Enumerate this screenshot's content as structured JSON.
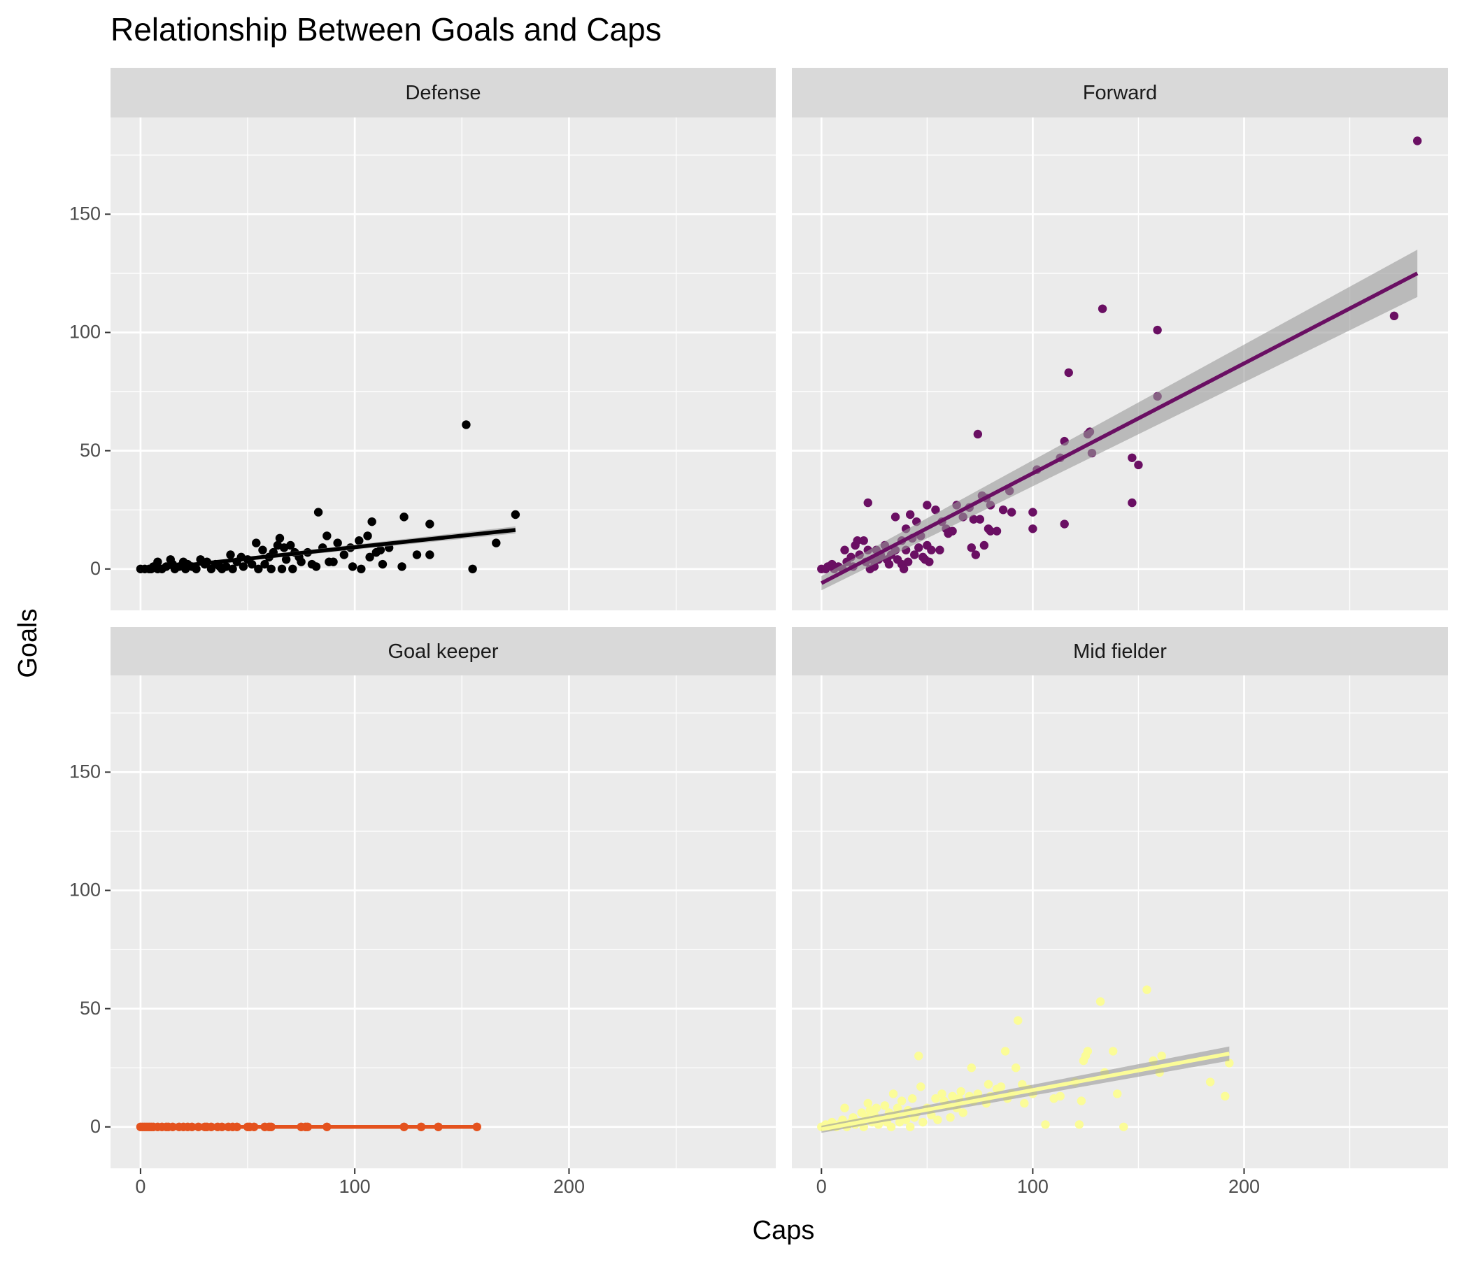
{
  "chart_data": {
    "type": "scatter",
    "title": "Relationship Between Goals and Caps",
    "x_label": "Caps",
    "y_label": "Goals",
    "xlim": [
      -14,
      296.5
    ],
    "ylim": [
      -17.5,
      190.9
    ],
    "xticks": [
      0,
      100,
      200
    ],
    "yticks": [
      0,
      50,
      100,
      150
    ],
    "x_minor_grid": [
      50,
      150,
      250
    ],
    "y_minor_grid": [
      25,
      75,
      125,
      175
    ],
    "grid": true,
    "series": [
      {
        "name": "Defense",
        "color": "#000000",
        "x": [
          0,
          2,
          4,
          5,
          6,
          8,
          8,
          10,
          12,
          14,
          15,
          16,
          18,
          20,
          21,
          22,
          24,
          26,
          28,
          30,
          31,
          33,
          35,
          37,
          38,
          40,
          42,
          43,
          45,
          47,
          48,
          50,
          52,
          54,
          55,
          57,
          58,
          60,
          61,
          62,
          64,
          65,
          66,
          67,
          68,
          70,
          71,
          72,
          74,
          75,
          78,
          80,
          82,
          83,
          85,
          87,
          88,
          90,
          92,
          95,
          98,
          99,
          102,
          103,
          106,
          107,
          108,
          110,
          112,
          113,
          116,
          122,
          123,
          129,
          135,
          135,
          152,
          155,
          166,
          175
        ],
        "values": [
          0,
          0,
          0,
          0,
          1,
          3,
          0,
          0,
          1,
          4,
          2,
          0,
          1,
          3,
          0,
          2,
          1,
          0,
          4,
          2,
          3,
          0,
          2,
          1,
          0,
          1,
          6,
          0,
          3,
          5,
          1,
          4,
          2,
          11,
          0,
          8,
          2,
          5,
          0,
          7,
          10,
          13,
          0,
          9,
          4,
          10,
          0,
          7,
          5,
          3,
          7,
          2,
          1,
          24,
          9,
          14,
          3,
          3,
          11,
          6,
          9,
          1,
          12,
          0,
          14,
          5,
          20,
          7,
          8,
          2,
          9,
          1,
          22,
          6,
          19,
          6,
          61,
          0,
          11,
          23
        ],
        "fit": {
          "x": [
            0,
            175
          ],
          "y": [
            -0.5,
            16.5
          ],
          "lower": [
            -1,
            15
          ],
          "upper": [
            0,
            18
          ]
        }
      },
      {
        "name": "Forward",
        "color": "#6a0f63",
        "x": [
          0,
          2,
          3,
          5,
          6,
          8,
          10,
          11,
          12,
          14,
          15,
          16,
          17,
          18,
          20,
          21,
          22,
          22,
          23,
          24,
          25,
          26,
          27,
          28,
          30,
          31,
          32,
          33,
          35,
          35,
          36,
          38,
          38,
          39,
          40,
          40,
          41,
          42,
          43,
          44,
          45,
          46,
          47,
          48,
          49,
          50,
          50,
          51,
          52,
          54,
          56,
          57,
          59,
          60,
          62,
          64,
          67,
          70,
          71,
          72,
          73,
          74,
          75,
          76,
          77,
          78,
          79,
          80,
          80,
          83,
          86,
          89,
          90,
          100,
          100,
          102,
          113,
          115,
          115,
          117,
          126,
          127,
          128,
          133,
          147,
          147,
          150,
          159,
          159,
          271,
          282
        ],
        "values": [
          0,
          0,
          1,
          2,
          0,
          1,
          0,
          8,
          3,
          5,
          1,
          10,
          12,
          6,
          12,
          3,
          28,
          8,
          0,
          4,
          1,
          8,
          4,
          6,
          10,
          4,
          2,
          6,
          8,
          22,
          4,
          12,
          2,
          0,
          17,
          8,
          3,
          23,
          13,
          6,
          20,
          9,
          14,
          5,
          4,
          27,
          10,
          3,
          8,
          25,
          8,
          20,
          17,
          15,
          16,
          27,
          22,
          26,
          9,
          21,
          6,
          57,
          21,
          31,
          10,
          30,
          17,
          27,
          16,
          16,
          25,
          33,
          24,
          24,
          17,
          42,
          47,
          54,
          19,
          83,
          57,
          58,
          49,
          110,
          47,
          28,
          44,
          101,
          73,
          107,
          181
        ],
        "fit": {
          "x": [
            0,
            282
          ],
          "y": [
            -6,
            125
          ],
          "lower": [
            -9,
            115
          ],
          "upper": [
            -3,
            135
          ]
        }
      },
      {
        "name": "Goal keeper",
        "color": "#e4521e",
        "x": [
          0,
          1,
          2,
          3,
          4,
          5,
          6,
          8,
          10,
          12,
          13,
          15,
          18,
          20,
          22,
          24,
          27,
          30,
          31,
          33,
          36,
          38,
          41,
          43,
          45,
          50,
          51,
          53,
          58,
          60,
          61,
          75,
          77,
          78,
          87,
          123,
          131,
          139,
          157
        ],
        "values": [
          0,
          0,
          0,
          0,
          0,
          0,
          0,
          0,
          0,
          0,
          0,
          0,
          0,
          0,
          0,
          0,
          0,
          0,
          0,
          0,
          0,
          0,
          0,
          0,
          0,
          0,
          0,
          0,
          0,
          0,
          0,
          0,
          0,
          0,
          0,
          0,
          0,
          0,
          0
        ],
        "fit": {
          "x": [
            0,
            157
          ],
          "y": [
            0,
            0
          ],
          "lower": [
            0,
            0
          ],
          "upper": [
            0,
            0
          ]
        }
      },
      {
        "name": "Mid fielder",
        "color": "#fbfc98",
        "x": [
          0,
          2,
          4,
          5,
          7,
          8,
          10,
          11,
          12,
          14,
          15,
          16,
          18,
          19,
          20,
          21,
          22,
          23,
          24,
          25,
          26,
          27,
          28,
          30,
          31,
          32,
          33,
          34,
          35,
          36,
          37,
          38,
          40,
          41,
          42,
          43,
          44,
          45,
          46,
          47,
          48,
          50,
          52,
          54,
          55,
          57,
          58,
          60,
          61,
          62,
          64,
          65,
          66,
          67,
          70,
          71,
          72,
          74,
          78,
          79,
          80,
          83,
          85,
          87,
          88,
          90,
          92,
          93,
          95,
          96,
          98,
          100,
          106,
          110,
          113,
          120,
          122,
          123,
          124,
          125,
          126,
          132,
          134,
          138,
          140,
          143,
          154,
          157,
          160,
          161,
          184,
          191,
          193
        ],
        "values": [
          0,
          1,
          0,
          2,
          0,
          1,
          3,
          8,
          0,
          2,
          4,
          1,
          2,
          6,
          0,
          4,
          10,
          7,
          2,
          5,
          8,
          1,
          3,
          9,
          2,
          6,
          0,
          14,
          5,
          8,
          2,
          11,
          3,
          7,
          0,
          12,
          4,
          6,
          30,
          17,
          2,
          8,
          5,
          12,
          3,
          14,
          11,
          9,
          4,
          13,
          8,
          12,
          15,
          6,
          13,
          25,
          11,
          14,
          10,
          18,
          13,
          16,
          17,
          32,
          12,
          14,
          25,
          45,
          18,
          10,
          16,
          14,
          1,
          12,
          13,
          19,
          1,
          11,
          28,
          30,
          32,
          53,
          23,
          32,
          14,
          0,
          58,
          28,
          23,
          30,
          19,
          13,
          27
        ],
        "fit": {
          "x": [
            0,
            193
          ],
          "y": [
            -1,
            31
          ],
          "lower": [
            -2.5,
            28
          ],
          "upper": [
            0.5,
            34
          ]
        }
      }
    ]
  }
}
